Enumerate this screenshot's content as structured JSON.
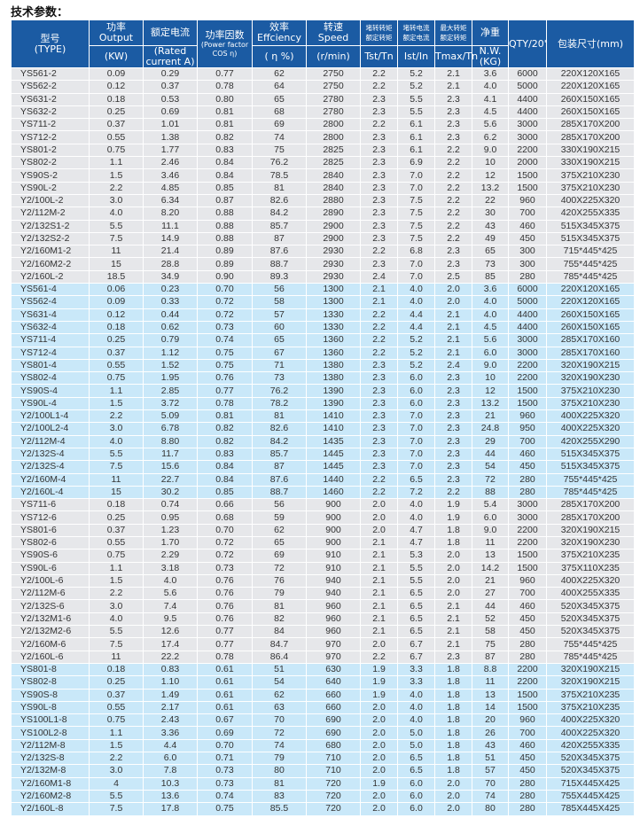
{
  "title": "技术参数：",
  "colors": {
    "header": "#1b5ba3",
    "gray_row": "#e6e7ea",
    "blue_row": "#c9e8f9"
  },
  "header": {
    "type": [
      "型号",
      "(TYPE)"
    ],
    "output": [
      "功率",
      "Output",
      "(KW)"
    ],
    "current": [
      "额定电流",
      "(Rated current A)"
    ],
    "pf": [
      "功率因数",
      "(Power factor",
      "COS η)"
    ],
    "eff": [
      "效率",
      "Effciency",
      "( η %)"
    ],
    "speed": [
      "转速",
      "Speed",
      "(r/min)"
    ],
    "tst": [
      "堵转转矩",
      "额定转矩",
      "Tst/Tn"
    ],
    "ist": [
      "堵转电流",
      "额定电流",
      "Ist/In"
    ],
    "tmax": [
      "最大转矩",
      "额定转矩",
      "Tmax/Tn"
    ],
    "nw": [
      "净重",
      "N.W.(KG)"
    ],
    "qty": "QTY/20'",
    "pack": "包装尺寸(mm)"
  },
  "groups": [
    {
      "style": "g",
      "rows": [
        [
          "YS561-2",
          "0.09",
          "0.29",
          "0.77",
          "62",
          "2750",
          "2.2",
          "5.2",
          "2.1",
          "3.6",
          "6000",
          "220X120X165"
        ],
        [
          "YS562-2",
          "0.12",
          "0.37",
          "0.78",
          "64",
          "2750",
          "2.2",
          "5.2",
          "2.1",
          "4.0",
          "5000",
          "220X120X165"
        ],
        [
          "YS631-2",
          "0.18",
          "0.53",
          "0.80",
          "65",
          "2780",
          "2.3",
          "5.5",
          "2.3",
          "4.1",
          "4400",
          "260X150X165"
        ],
        [
          "YS632-2",
          "0.25",
          "0.69",
          "0.81",
          "68",
          "2780",
          "2.3",
          "5.5",
          "2.3",
          "4.5",
          "4400",
          "260X150X165"
        ],
        [
          "YS711-2",
          "0.37",
          "1.01",
          "0.81",
          "69",
          "2800",
          "2.2",
          "6.1",
          "2.3",
          "5.6",
          "3000",
          "285X170X200"
        ],
        [
          "YS712-2",
          "0.55",
          "1.38",
          "0.82",
          "74",
          "2800",
          "2.3",
          "6.1",
          "2.3",
          "6.2",
          "3000",
          "285X170X200"
        ],
        [
          "YS801-2",
          "0.75",
          "1.77",
          "0.83",
          "75",
          "2825",
          "2.3",
          "6.1",
          "2.2",
          "9.0",
          "2200",
          "330X190X215"
        ],
        [
          "YS802-2",
          "1.1",
          "2.46",
          "0.84",
          "76.2",
          "2825",
          "2.3",
          "6.9",
          "2.2",
          "10",
          "2000",
          "330X190X215"
        ],
        [
          "YS90S-2",
          "1.5",
          "3.46",
          "0.84",
          "78.5",
          "2840",
          "2.3",
          "7.0",
          "2.2",
          "12",
          "1500",
          "375X210X230"
        ],
        [
          "YS90L-2",
          "2.2",
          "4.85",
          "0.85",
          "81",
          "2840",
          "2.3",
          "7.0",
          "2.2",
          "13.2",
          "1500",
          "375X210X230"
        ],
        [
          "Y2/100L-2",
          "3.0",
          "6.34",
          "0.87",
          "82.6",
          "2880",
          "2.3",
          "7.5",
          "2.2",
          "22",
          "960",
          "400X225X320"
        ],
        [
          "Y2/112M-2",
          "4.0",
          "8.20",
          "0.88",
          "84.2",
          "2890",
          "2.3",
          "7.5",
          "2.2",
          "30",
          "700",
          "420X255X335"
        ],
        [
          "Y2/132S1-2",
          "5.5",
          "11.1",
          "0.88",
          "85.7",
          "2900",
          "2.3",
          "7.5",
          "2.2",
          "43",
          "460",
          "515X345X375"
        ],
        [
          "Y2/132S2-2",
          "7.5",
          "14.9",
          "0.88",
          "87",
          "2900",
          "2.3",
          "7.5",
          "2.2",
          "49",
          "450",
          "515X345X375"
        ],
        [
          "Y2/160M1-2",
          "11",
          "21.4",
          "0.89",
          "87.6",
          "2930",
          "2.2",
          "6.8",
          "2.3",
          "65",
          "300",
          "715*445*425"
        ],
        [
          "Y2/160M2-2",
          "15",
          "28.8",
          "0.89",
          "88.7",
          "2930",
          "2.3",
          "7.0",
          "2.3",
          "73",
          "300",
          "755*445*425"
        ],
        [
          "Y2/160L-2",
          "18.5",
          "34.9",
          "0.90",
          "89.3",
          "2930",
          "2.4",
          "7.0",
          "2.5",
          "85",
          "280",
          "785*445*425"
        ]
      ]
    },
    {
      "style": "b",
      "rows": [
        [
          "YS561-4",
          "0.06",
          "0.23",
          "0.70",
          "56",
          "1300",
          "2.1",
          "4.0",
          "2.0",
          "3.6",
          "6000",
          "220X120X165"
        ],
        [
          "YS562-4",
          "0.09",
          "0.33",
          "0.72",
          "58",
          "1300",
          "2.1",
          "4.0",
          "2.0",
          "4.0",
          "5000",
          "220X120X165"
        ],
        [
          "YS631-4",
          "0.12",
          "0.44",
          "0.72",
          "57",
          "1330",
          "2.2",
          "4.4",
          "2.1",
          "4.0",
          "4400",
          "260X150X165"
        ],
        [
          "YS632-4",
          "0.18",
          "0.62",
          "0.73",
          "60",
          "1330",
          "2.2",
          "4.4",
          "2.1",
          "4.5",
          "4400",
          "260X150X165"
        ],
        [
          "YS711-4",
          "0.25",
          "0.79",
          "0.74",
          "65",
          "1360",
          "2.2",
          "5.2",
          "2.1",
          "5.6",
          "3000",
          "285X170X160"
        ],
        [
          "YS712-4",
          "0.37",
          "1.12",
          "0.75",
          "67",
          "1360",
          "2.2",
          "5.2",
          "2.1",
          "6.0",
          "3000",
          "285X170X160"
        ],
        [
          "YS801-4",
          "0.55",
          "1.52",
          "0.75",
          "71",
          "1380",
          "2.3",
          "5.2",
          "2.4",
          "9.0",
          "2200",
          "320X190X215"
        ],
        [
          "YS802-4",
          "0.75",
          "1.95",
          "0.76",
          "73",
          "1380",
          "2.3",
          "6.0",
          "2.3",
          "10",
          "2200",
          "320X190X230"
        ],
        [
          "YS90S-4",
          "1.1",
          "2.85",
          "0.77",
          "76.2",
          "1390",
          "2.3",
          "6.0",
          "2.3",
          "12",
          "1500",
          "375X210X230"
        ],
        [
          "YS90L-4",
          "1.5",
          "3.72",
          "0.78",
          "78.2",
          "1390",
          "2.3",
          "6.0",
          "2.3",
          "13.2",
          "1500",
          "375X210X230"
        ],
        [
          "Y2/100L1-4",
          "2.2",
          "5.09",
          "0.81",
          "81",
          "1410",
          "2.3",
          "7.0",
          "2.3",
          "21",
          "960",
          "400X225X320"
        ],
        [
          "Y2/100L2-4",
          "3.0",
          "6.78",
          "0.82",
          "82.6",
          "1410",
          "2.3",
          "7.0",
          "2.3",
          "24.8",
          "950",
          "400X225X320"
        ],
        [
          "Y2/112M-4",
          "4.0",
          "8.80",
          "0.82",
          "84.2",
          "1435",
          "2.3",
          "7.0",
          "2.3",
          "29",
          "700",
          "420X255X290"
        ],
        [
          "Y2/132S-4",
          "5.5",
          "11.7",
          "0.83",
          "85.7",
          "1445",
          "2.3",
          "7.0",
          "2.3",
          "44",
          "460",
          "515X345X375"
        ],
        [
          "Y2/132S-4",
          "7.5",
          "15.6",
          "0.84",
          "87",
          "1445",
          "2.3",
          "7.0",
          "2.3",
          "54",
          "450",
          "515X345X375"
        ],
        [
          "Y2/160M-4",
          "11",
          "22.7",
          "0.84",
          "87.6",
          "1440",
          "2.2",
          "6.5",
          "2.3",
          "72",
          "280",
          "755*445*425"
        ],
        [
          "Y2/160L-4",
          "15",
          "30.2",
          "0.85",
          "88.7",
          "1460",
          "2.2",
          "7.2",
          "2.2",
          "88",
          "280",
          "785*445*425"
        ]
      ]
    },
    {
      "style": "g",
      "rows": [
        [
          "YS711-6",
          "0.18",
          "0.74",
          "0.66",
          "56",
          "900",
          "2.0",
          "4.0",
          "1.9",
          "5.4",
          "3000",
          "285X170X200"
        ],
        [
          "YS712-6",
          "0.25",
          "0.95",
          "0.68",
          "59",
          "900",
          "2.0",
          "4.0",
          "1.9",
          "6.0",
          "3000",
          "285X170X200"
        ],
        [
          "YS801-6",
          "0.37",
          "1.23",
          "0.70",
          "62",
          "900",
          "2.0",
          "4.7",
          "1.8",
          "9.0",
          "2200",
          "320X190X215"
        ],
        [
          "YS802-6",
          "0.55",
          "1.70",
          "0.72",
          "65",
          "900",
          "2.1",
          "4.7",
          "1.8",
          "11",
          "2200",
          "320X190X230"
        ],
        [
          "YS90S-6",
          "0.75",
          "2.29",
          "0.72",
          "69",
          "910",
          "2.1",
          "5.3",
          "2.0",
          "13",
          "1500",
          "375X210X235"
        ],
        [
          "YS90L-6",
          "1.1",
          "3.18",
          "0.73",
          "72",
          "910",
          "2.1",
          "5.5",
          "2.0",
          "14.2",
          "1500",
          "375X110X235"
        ],
        [
          "Y2/100L-6",
          "1.5",
          "4.0",
          "0.76",
          "76",
          "940",
          "2.1",
          "5.5",
          "2.0",
          "21",
          "960",
          "400X225X320"
        ],
        [
          "Y2/112M-6",
          "2.2",
          "5.6",
          "0.76",
          "79",
          "940",
          "2.1",
          "6.5",
          "2.0",
          "27",
          "700",
          "400X255X335"
        ],
        [
          "Y2/132S-6",
          "3.0",
          "7.4",
          "0.76",
          "81",
          "960",
          "2.1",
          "6.5",
          "2.1",
          "44",
          "460",
          "520X345X375"
        ],
        [
          "Y2/132M1-6",
          "4.0",
          "9.5",
          "0.76",
          "82",
          "960",
          "2.1",
          "6.5",
          "2.1",
          "52",
          "450",
          "520X345X375"
        ],
        [
          "Y2/132M2-6",
          "5.5",
          "12.6",
          "0.77",
          "84",
          "960",
          "2.1",
          "6.5",
          "2.1",
          "58",
          "450",
          "520X345X375"
        ],
        [
          "Y2/160M-6",
          "7.5",
          "17.4",
          "0.77",
          "84.7",
          "970",
          "2.0",
          "6.7",
          "2.1",
          "75",
          "280",
          "755*445*425"
        ],
        [
          "Y2/160L-6",
          "11",
          "22.2",
          "0.78",
          "86.4",
          "970",
          "2.2",
          "6.7",
          "2.3",
          "87",
          "280",
          "785*445*425"
        ]
      ]
    },
    {
      "style": "b",
      "rows": [
        [
          "YS801-8",
          "0.18",
          "0.83",
          "0.61",
          "51",
          "630",
          "1.9",
          "3.3",
          "1.8",
          "8.8",
          "2200",
          "320X190X215"
        ],
        [
          "YS802-8",
          "0.25",
          "1.10",
          "0.61",
          "54",
          "640",
          "1.9",
          "3.3",
          "1.8",
          "11",
          "2200",
          "320X190X215"
        ],
        [
          "YS90S-8",
          "0.37",
          "1.49",
          "0.61",
          "62",
          "660",
          "1.9",
          "4.0",
          "1.8",
          "13",
          "1500",
          "375X210X235"
        ],
        [
          "YS90L-8",
          "0.55",
          "2.17",
          "0.61",
          "63",
          "660",
          "2.0",
          "4.0",
          "1.8",
          "14",
          "1500",
          "375X210X235"
        ],
        [
          "YS100L1-8",
          "0.75",
          "2.43",
          "0.67",
          "70",
          "690",
          "2.0",
          "4.0",
          "1.8",
          "20",
          "960",
          "400X225X320"
        ],
        [
          "YS100L2-8",
          "1.1",
          "3.36",
          "0.69",
          "72",
          "690",
          "2.0",
          "5.0",
          "1.8",
          "26",
          "700",
          "400X225X320"
        ],
        [
          "Y2/112M-8",
          "1.5",
          "4.4",
          "0.70",
          "74",
          "680",
          "2.0",
          "5.0",
          "1.8",
          "43",
          "460",
          "420X255X335"
        ],
        [
          "Y2/132S-8",
          "2.2",
          "6.0",
          "0.71",
          "79",
          "710",
          "2.0",
          "6.5",
          "1.8",
          "51",
          "450",
          "520X345X375"
        ],
        [
          "Y2/132M-8",
          "3.0",
          "7.8",
          "0.73",
          "80",
          "710",
          "2.0",
          "6.5",
          "1.8",
          "57",
          "450",
          "520X345X375"
        ],
        [
          "Y2/160M1-8",
          "4",
          "10.3",
          "0.73",
          "81",
          "720",
          "1.9",
          "6.0",
          "2.0",
          "70",
          "280",
          "715X445X425"
        ],
        [
          "Y2/160M2-8",
          "5.5",
          "13.6",
          "0.74",
          "83",
          "720",
          "2.0",
          "6.0",
          "2.0",
          "74",
          "280",
          "755X445X425"
        ],
        [
          "Y2/160L-8",
          "7.5",
          "17.8",
          "0.75",
          "85.5",
          "720",
          "2.0",
          "6.0",
          "2.0",
          "80",
          "280",
          "785X445X425"
        ]
      ]
    }
  ]
}
